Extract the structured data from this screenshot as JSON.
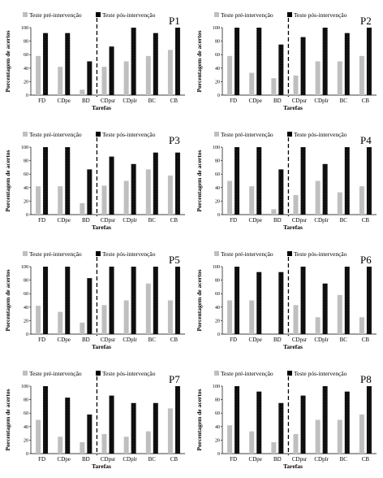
{
  "legend": {
    "pre_label": "Teste pré-intervenção",
    "post_label": "Teste pós-intervenção",
    "pre_color": "#bfbfbf",
    "post_color": "#000000"
  },
  "chart_data": [
    {
      "type": "bar",
      "title": "P1",
      "categories": [
        "FD",
        "CDpe",
        "BD",
        "CDpsr",
        "CDplr",
        "BC",
        "CB"
      ],
      "xlabel": "Tarefas",
      "ylabel": "Porcentagem de acertos",
      "ylim": [
        0,
        100
      ],
      "yticks": [
        0,
        20,
        40,
        60,
        80,
        100
      ],
      "series": [
        {
          "name": "Teste pré-intervenção",
          "values": [
            58,
            42,
            8,
            42,
            50,
            58,
            67
          ]
        },
        {
          "name": "Teste pós-intervenção",
          "values": [
            92,
            92,
            50,
            72,
            100,
            92,
            100
          ]
        }
      ]
    },
    {
      "type": "bar",
      "title": "P2",
      "categories": [
        "FD",
        "CDpe",
        "BD",
        "CDpsr",
        "CDplr",
        "BC",
        "CB"
      ],
      "xlabel": "Tarefas",
      "ylabel": "Porcentagem de acertos",
      "ylim": [
        0,
        100
      ],
      "yticks": [
        0,
        20,
        40,
        60,
        80,
        100
      ],
      "series": [
        {
          "name": "Teste pré-intervenção",
          "values": [
            58,
            33,
            25,
            29,
            50,
            50,
            58
          ]
        },
        {
          "name": "Teste pós-intervenção",
          "values": [
            100,
            100,
            75,
            86,
            100,
            92,
            100
          ]
        }
      ]
    },
    {
      "type": "bar",
      "title": "P3",
      "categories": [
        "FD",
        "CDpe",
        "BD",
        "CDpsr",
        "CDplr",
        "BC",
        "CB"
      ],
      "xlabel": "Tarefas",
      "ylabel": "Porcentagem de acertos",
      "ylim": [
        0,
        100
      ],
      "yticks": [
        0,
        20,
        40,
        60,
        80,
        100
      ],
      "series": [
        {
          "name": "Teste pré-intervenção",
          "values": [
            42,
            42,
            17,
            43,
            50,
            67,
            58
          ]
        },
        {
          "name": "Teste pós-intervenção",
          "values": [
            100,
            100,
            67,
            86,
            75,
            92,
            92
          ]
        }
      ]
    },
    {
      "type": "bar",
      "title": "P4",
      "categories": [
        "FD",
        "CDpe",
        "BD",
        "CDpsr",
        "CDplr",
        "BC",
        "CB"
      ],
      "xlabel": "Tarefas",
      "ylabel": "Porcentagem de acertos",
      "ylim": [
        0,
        100
      ],
      "yticks": [
        0,
        20,
        40,
        60,
        80,
        100
      ],
      "series": [
        {
          "name": "Teste pré-intervenção",
          "values": [
            50,
            42,
            8,
            29,
            50,
            33,
            42
          ]
        },
        {
          "name": "Teste pós-intervenção",
          "values": [
            100,
            100,
            67,
            100,
            75,
            100,
            100
          ]
        }
      ]
    },
    {
      "type": "bar",
      "title": "P5",
      "categories": [
        "FD",
        "CDpe",
        "BD",
        "CDpsr",
        "CDplr",
        "BC",
        "CB"
      ],
      "xlabel": "Tarefas",
      "ylabel": "Porcentagem de acertos",
      "ylim": [
        0,
        100
      ],
      "yticks": [
        0,
        20,
        40,
        60,
        80,
        100
      ],
      "series": [
        {
          "name": "Teste pré-intervenção",
          "values": [
            42,
            33,
            17,
            43,
            50,
            75,
            50
          ]
        },
        {
          "name": "Teste pós-intervenção",
          "values": [
            100,
            100,
            83,
            100,
            100,
            100,
            100
          ]
        }
      ]
    },
    {
      "type": "bar",
      "title": "P6",
      "categories": [
        "FD",
        "CDpe",
        "BD",
        "CDpsr",
        "CDplr",
        "BC",
        "CB"
      ],
      "xlabel": "Tarefas",
      "ylabel": "Porcentagem de acertos",
      "ylim": [
        0,
        100
      ],
      "yticks": [
        0,
        20,
        40,
        60,
        80,
        100
      ],
      "series": [
        {
          "name": "Teste pré-intervenção",
          "values": [
            50,
            50,
            0,
            43,
            25,
            58,
            25
          ]
        },
        {
          "name": "Teste pós-intervenção",
          "values": [
            100,
            92,
            92,
            100,
            75,
            100,
            100
          ]
        }
      ]
    },
    {
      "type": "bar",
      "title": "P7",
      "categories": [
        "FD",
        "CDpe",
        "BD",
        "CDpsr",
        "CDplr",
        "BC",
        "CB"
      ],
      "xlabel": "Tarefas",
      "ylabel": "Porcentagem de acertos",
      "ylim": [
        0,
        100
      ],
      "yticks": [
        0,
        20,
        40,
        60,
        80,
        100
      ],
      "series": [
        {
          "name": "Teste pré-intervenção",
          "values": [
            50,
            25,
            17,
            29,
            25,
            33,
            67
          ]
        },
        {
          "name": "Teste pós-intervenção",
          "values": [
            100,
            83,
            58,
            86,
            75,
            75,
            100
          ]
        }
      ]
    },
    {
      "type": "bar",
      "title": "P8",
      "categories": [
        "FD",
        "CDpe",
        "BD",
        "CDpsr",
        "CDplr",
        "BC",
        "CB"
      ],
      "xlabel": "Tarefas",
      "ylabel": "Porcentagem de acertos",
      "ylim": [
        0,
        100
      ],
      "yticks": [
        0,
        20,
        40,
        60,
        80,
        100
      ],
      "series": [
        {
          "name": "Teste pré-intervenção",
          "values": [
            42,
            33,
            17,
            29,
            50,
            50,
            58
          ]
        },
        {
          "name": "Teste pós-intervenção",
          "values": [
            100,
            92,
            75,
            86,
            100,
            92,
            100
          ]
        }
      ]
    }
  ]
}
